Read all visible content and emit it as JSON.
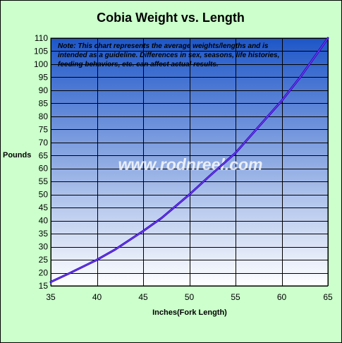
{
  "chart_data": {
    "type": "line",
    "title": "Cobia Weight vs. Length",
    "xlabel": "Inches(Fork Length)",
    "ylabel": "Pounds",
    "xlim": [
      35,
      65
    ],
    "ylim": [
      15,
      110
    ],
    "xticks": [
      35,
      40,
      45,
      50,
      55,
      60,
      65
    ],
    "yticks": [
      15,
      20,
      25,
      30,
      35,
      40,
      45,
      50,
      55,
      60,
      65,
      70,
      75,
      80,
      85,
      90,
      95,
      100,
      105,
      110
    ],
    "grid": true,
    "series": [
      {
        "x": [
          35,
          37,
          40,
          42,
          45,
          47,
          50,
          52,
          55,
          57,
          60,
          62,
          65
        ],
        "y": [
          16.5,
          19.8,
          25,
          29,
          36,
          41,
          50,
          56.5,
          66,
          74,
          86,
          95,
          110
        ]
      }
    ],
    "annotations": [
      "Note: This chart represents the average weights/lengths and is",
      "intended as a guideline. Differences in sex, seasons, life histories,",
      "feeding behaviors, etc. can affect actual results."
    ],
    "watermark": "www.rodnreel.com",
    "colors": {
      "background": "#ccffcc",
      "plot_top": "#1e56c8",
      "plot_bottom": "#ffffff",
      "line": "#3300cc"
    }
  }
}
